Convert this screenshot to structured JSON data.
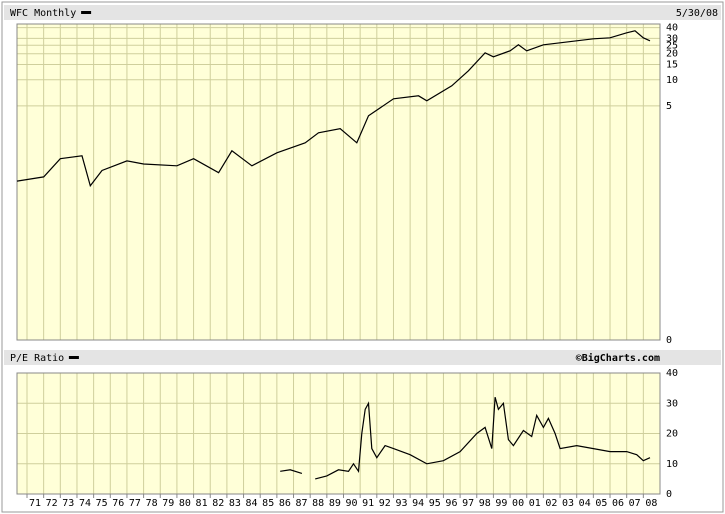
{
  "chart_data": [
    {
      "type": "line",
      "title": "WFC Monthly",
      "date": "5/30/08",
      "log_y": true,
      "grid": true,
      "xlim": [
        1970.4,
        2009.0
      ],
      "ylim": [
        0.01,
        44
      ],
      "yticks": [
        40,
        30,
        25,
        20,
        15,
        10,
        5,
        {
          "value": 0.01,
          "label": "0"
        }
      ],
      "series": [
        {
          "color": "#000000",
          "x": [
            1970.4,
            1972,
            1973,
            1974.3,
            1974.8,
            1975.5,
            1977,
            1978,
            1980,
            1981,
            1982.5,
            1983.3,
            1984.5,
            1986,
            1987.7,
            1988.5,
            1989.8,
            1990.8,
            1991.5,
            1993,
            1994.5,
            1995,
            1996.5,
            1997.5,
            1998.5,
            1999,
            2000,
            2000.5,
            2001,
            2002,
            2003,
            2004,
            2005,
            2006,
            2007,
            2007.5,
            2008,
            2008.4
          ],
          "values": [
            0.68,
            0.76,
            1.23,
            1.33,
            0.6,
            0.9,
            1.16,
            1.07,
            1.02,
            1.23,
            0.85,
            1.52,
            1.02,
            1.44,
            1.88,
            2.45,
            2.73,
            1.88,
            3.85,
            6.04,
            6.54,
            5.73,
            8.53,
            12.7,
            20.5,
            18.4,
            21.6,
            25.3,
            21.6,
            25.3,
            26.7,
            28.2,
            29.7,
            30.5,
            34.8,
            36.7,
            30.5,
            28.2
          ]
        }
      ]
    },
    {
      "type": "line",
      "title": "P/E Ratio",
      "source": "©BigCharts.com",
      "grid": true,
      "xlim": [
        1970.4,
        2009.0
      ],
      "ylim": [
        0,
        40
      ],
      "yticks": [
        0,
        10,
        20,
        30,
        40
      ],
      "xticks": [
        {
          "value": 1971,
          "label": "71"
        },
        {
          "value": 1972,
          "label": "72"
        },
        {
          "value": 1973,
          "label": "73"
        },
        {
          "value": 1974,
          "label": "74"
        },
        {
          "value": 1975,
          "label": "75"
        },
        {
          "value": 1976,
          "label": "76"
        },
        {
          "value": 1977,
          "label": "77"
        },
        {
          "value": 1978,
          "label": "78"
        },
        {
          "value": 1979,
          "label": "79"
        },
        {
          "value": 1980,
          "label": "80"
        },
        {
          "value": 1981,
          "label": "81"
        },
        {
          "value": 1982,
          "label": "82"
        },
        {
          "value": 1983,
          "label": "83"
        },
        {
          "value": 1984,
          "label": "84"
        },
        {
          "value": 1985,
          "label": "85"
        },
        {
          "value": 1986,
          "label": "86"
        },
        {
          "value": 1987,
          "label": "87"
        },
        {
          "value": 1988,
          "label": "88"
        },
        {
          "value": 1989,
          "label": "89"
        },
        {
          "value": 1990,
          "label": "90"
        },
        {
          "value": 1991,
          "label": "91"
        },
        {
          "value": 1992,
          "label": "92"
        },
        {
          "value": 1993,
          "label": "93"
        },
        {
          "value": 1994,
          "label": "94"
        },
        {
          "value": 1995,
          "label": "95"
        },
        {
          "value": 1996,
          "label": "96"
        },
        {
          "value": 1997,
          "label": "97"
        },
        {
          "value": 1998,
          "label": "98"
        },
        {
          "value": 1999,
          "label": "99"
        },
        {
          "value": 2000,
          "label": "00"
        },
        {
          "value": 2001,
          "label": "01"
        },
        {
          "value": 2002,
          "label": "02"
        },
        {
          "value": 2003,
          "label": "03"
        },
        {
          "value": 2004,
          "label": "04"
        },
        {
          "value": 2005,
          "label": "05"
        },
        {
          "value": 2006,
          "label": "06"
        },
        {
          "value": 2007,
          "label": "07"
        },
        {
          "value": 2008,
          "label": "08"
        }
      ],
      "series": [
        {
          "color": "#000000",
          "x": [
            1986.2,
            1986.8,
            1987.5,
            1988,
            1988.3,
            1989,
            1989.7,
            1990.3,
            1990.6,
            1990.9,
            1991.1,
            1991.3,
            1991.5,
            1991.7,
            1992,
            1992.5,
            1993,
            1994,
            1995,
            1996,
            1997,
            1998,
            1998.5,
            1998.9,
            1999.1,
            1999.3,
            1999.6,
            1999.9,
            2000.2,
            2000.8,
            2001.3,
            2001.6,
            2002,
            2002.3,
            2002.7,
            2003,
            2004,
            2005,
            2006,
            2007,
            2007.6,
            2008,
            2008.4
          ],
          "values": [
            7.5,
            8,
            6.8,
            null,
            5,
            6,
            8,
            7.5,
            10,
            7.5,
            20,
            28,
            30,
            15,
            12,
            16,
            15,
            13,
            10,
            11,
            14,
            20,
            22,
            15,
            32,
            28,
            30,
            18,
            16,
            21,
            19,
            26,
            22,
            25,
            20,
            15,
            16,
            15,
            14,
            14,
            13,
            11,
            12
          ]
        }
      ]
    }
  ]
}
